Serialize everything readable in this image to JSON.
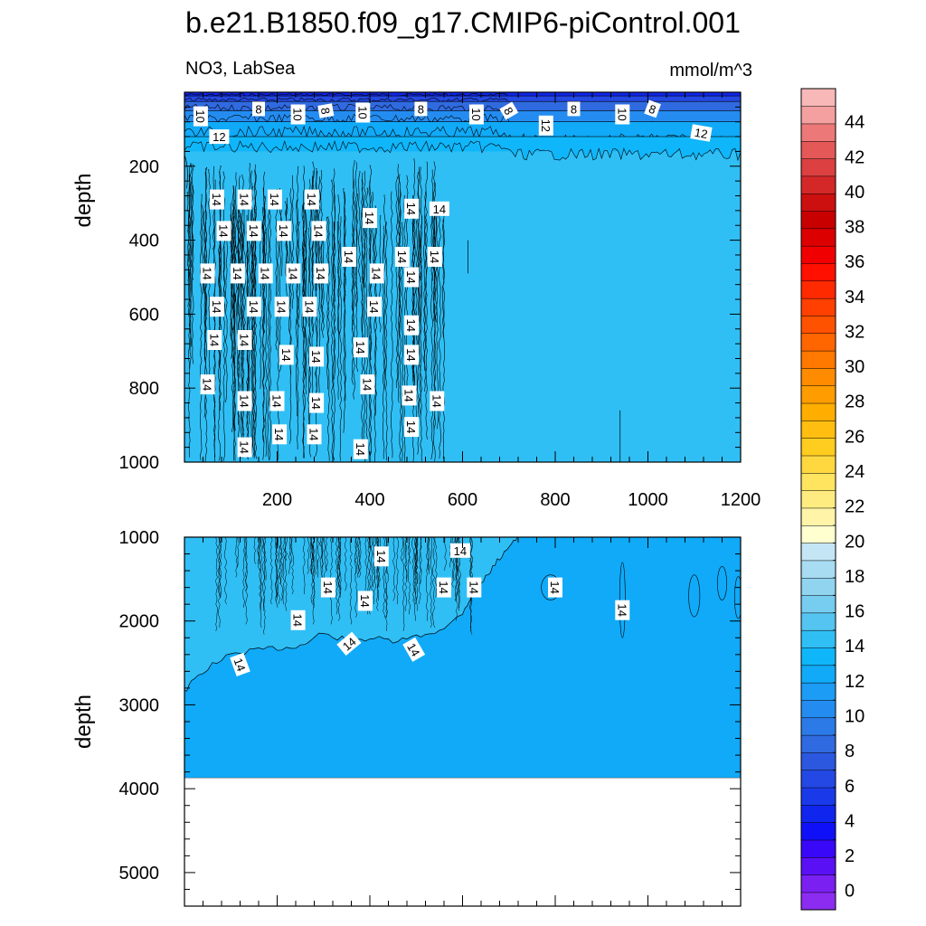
{
  "title": "b.e21.B1850.f09_g17.CMIP6-piControl.001",
  "chart_data": {
    "type": "contour",
    "variable_label": "NO3, LabSea",
    "units_label": "mmol/m^3",
    "x_ticks": [
      200,
      400,
      600,
      800,
      1000,
      1200
    ],
    "x_range": [
      0,
      1200
    ],
    "panels": [
      {
        "name": "upper",
        "ylabel": "depth",
        "y_range": [
          0,
          1000
        ],
        "y_ticks": [
          200,
          400,
          600,
          800,
          1000
        ],
        "fill_value": 14,
        "surface_layer": [
          0,
          160
        ],
        "contour_labels": [
          {
            "x": 35,
            "y": 65,
            "v": "10",
            "rot": 90
          },
          {
            "x": 160,
            "y": 45,
            "v": "8",
            "rot": 0
          },
          {
            "x": 245,
            "y": 60,
            "v": "10",
            "rot": 90
          },
          {
            "x": 305,
            "y": 50,
            "v": "8",
            "rot": 80
          },
          {
            "x": 385,
            "y": 55,
            "v": "10",
            "rot": 90
          },
          {
            "x": 510,
            "y": 45,
            "v": "8",
            "rot": 0
          },
          {
            "x": 630,
            "y": 60,
            "v": "10",
            "rot": 90
          },
          {
            "x": 700,
            "y": 50,
            "v": "8",
            "rot": 60
          },
          {
            "x": 780,
            "y": 90,
            "v": "12",
            "rot": 90
          },
          {
            "x": 840,
            "y": 45,
            "v": "8",
            "rot": 0
          },
          {
            "x": 945,
            "y": 60,
            "v": "10",
            "rot": 90
          },
          {
            "x": 1010,
            "y": 45,
            "v": "8",
            "rot": 20
          },
          {
            "x": 75,
            "y": 120,
            "v": "12",
            "rot": 0
          },
          {
            "x": 1115,
            "y": 110,
            "v": "12",
            "rot": 10
          },
          {
            "x": 550,
            "y": 315,
            "v": "14",
            "rot": 0
          }
        ],
        "label_14_points": [
          [
            70,
            290
          ],
          [
            130,
            290
          ],
          [
            195,
            290
          ],
          [
            275,
            290
          ],
          [
            400,
            340
          ],
          [
            490,
            315
          ],
          [
            85,
            375
          ],
          [
            150,
            375
          ],
          [
            215,
            375
          ],
          [
            290,
            375
          ],
          [
            355,
            445
          ],
          [
            470,
            445
          ],
          [
            540,
            445
          ],
          [
            50,
            490
          ],
          [
            115,
            490
          ],
          [
            175,
            490
          ],
          [
            235,
            490
          ],
          [
            295,
            490
          ],
          [
            415,
            490
          ],
          [
            490,
            500
          ],
          [
            70,
            580
          ],
          [
            150,
            580
          ],
          [
            210,
            580
          ],
          [
            270,
            580
          ],
          [
            410,
            580
          ],
          [
            490,
            630
          ],
          [
            65,
            670
          ],
          [
            130,
            670
          ],
          [
            220,
            710
          ],
          [
            285,
            715
          ],
          [
            380,
            690
          ],
          [
            490,
            710
          ],
          [
            50,
            790
          ],
          [
            395,
            790
          ],
          [
            130,
            835
          ],
          [
            200,
            835
          ],
          [
            285,
            840
          ],
          [
            485,
            820
          ],
          [
            545,
            835
          ],
          [
            205,
            925
          ],
          [
            280,
            925
          ],
          [
            490,
            905
          ],
          [
            130,
            960
          ],
          [
            380,
            965
          ]
        ]
      },
      {
        "name": "lower",
        "ylabel": "depth",
        "y_range": [
          1000,
          5400
        ],
        "y_ticks": [
          1000,
          2000,
          3000,
          4000,
          5000
        ],
        "fill_value": 12,
        "bottom_depth": 3870,
        "contour_14_boundary": [
          [
            0,
            2850
          ],
          [
            20,
            2700
          ],
          [
            60,
            2520
          ],
          [
            100,
            2400
          ],
          [
            140,
            2360
          ],
          [
            180,
            2330
          ],
          [
            220,
            2320
          ],
          [
            260,
            2280
          ],
          [
            290,
            2150
          ],
          [
            330,
            2200
          ],
          [
            370,
            2230
          ],
          [
            410,
            2200
          ],
          [
            450,
            2250
          ],
          [
            490,
            2200
          ],
          [
            530,
            2150
          ],
          [
            570,
            2050
          ],
          [
            600,
            1900
          ],
          [
            620,
            1700
          ],
          [
            640,
            1550
          ],
          [
            660,
            1400
          ],
          [
            680,
            1250
          ],
          [
            700,
            1100
          ],
          [
            720,
            1000
          ]
        ],
        "contour_labels": [
          {
            "x": 120,
            "y": 2520,
            "v": "14",
            "rot": 70
          },
          {
            "x": 245,
            "y": 1990,
            "v": "14",
            "rot": 90
          },
          {
            "x": 310,
            "y": 1600,
            "v": "14",
            "rot": 90
          },
          {
            "x": 355,
            "y": 2270,
            "v": "14",
            "rot": -40
          },
          {
            "x": 390,
            "y": 1760,
            "v": "14",
            "rot": 90
          },
          {
            "x": 425,
            "y": 1230,
            "v": "14",
            "rot": 90
          },
          {
            "x": 495,
            "y": 2340,
            "v": "14",
            "rot": 60
          },
          {
            "x": 560,
            "y": 1600,
            "v": "14",
            "rot": 90
          },
          {
            "x": 595,
            "y": 1160,
            "v": "14",
            "rot": 0
          },
          {
            "x": 625,
            "y": 1600,
            "v": "14",
            "rot": 90
          },
          {
            "x": 800,
            "y": 1600,
            "v": "14",
            "rot": 90
          },
          {
            "x": 945,
            "y": 1870,
            "v": "14",
            "rot": 90
          }
        ]
      }
    ],
    "colorbar": {
      "levels": [
        0,
        2,
        4,
        6,
        8,
        10,
        12,
        14,
        16,
        18,
        20,
        22,
        24,
        26,
        28,
        30,
        32,
        34,
        36,
        38,
        40,
        42,
        44
      ],
      "labels": [
        "0",
        "2",
        "4",
        "6",
        "8",
        "10",
        "12",
        "14",
        "16",
        "18",
        "20",
        "22",
        "24",
        "26",
        "28",
        "30",
        "32",
        "34",
        "36",
        "38",
        "40",
        "42",
        "44"
      ],
      "colors": [
        "#8c2cf0",
        "#7a20f0",
        "#5a10f5",
        "#3a08f8",
        "#1010f8",
        "#1026ee",
        "#1a3aea",
        "#2448e4",
        "#2c58e0",
        "#306ae0",
        "#2c7ae8",
        "#248cf0",
        "#1c9cf4",
        "#10aaf8",
        "#10b6fa",
        "#30bff5",
        "#55c4f0",
        "#76cdf0",
        "#90d4f0",
        "#a8dcf2",
        "#c4e6f4",
        "#ffffd0",
        "#fff4a8",
        "#ffec80",
        "#ffe460",
        "#ffd840",
        "#ffcc20",
        "#ffbe10",
        "#ffae00",
        "#ff9c00",
        "#ff8c00",
        "#ff7800",
        "#ff6600",
        "#ff5200",
        "#ff4000",
        "#ff2a00",
        "#ff1000",
        "#f00000",
        "#dc0000",
        "#c80000",
        "#cc1010",
        "#d42828",
        "#dc4040",
        "#e45858",
        "#ec7878",
        "#f4a0a0",
        "#f8b8b8"
      ]
    }
  }
}
